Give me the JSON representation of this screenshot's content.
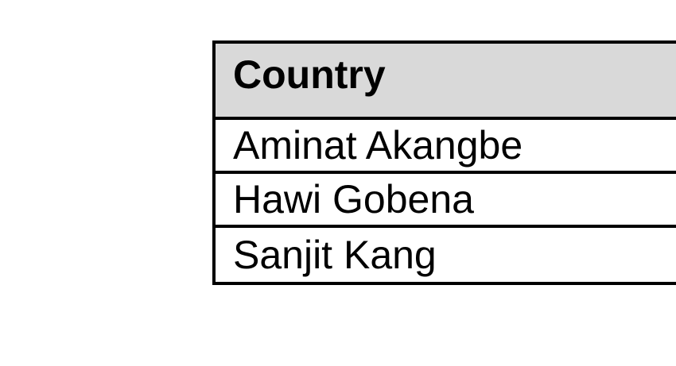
{
  "colors": {
    "page-bg": "#ffffff",
    "header-bg": "#d9d9d9",
    "border": "#000000",
    "text": "#000000",
    "row-bg": "#ffffff"
  },
  "table": {
    "header": "Country",
    "rows": [
      "Aminat Akangbe",
      "Hawi Gobena",
      "Sanjit Kang"
    ]
  }
}
